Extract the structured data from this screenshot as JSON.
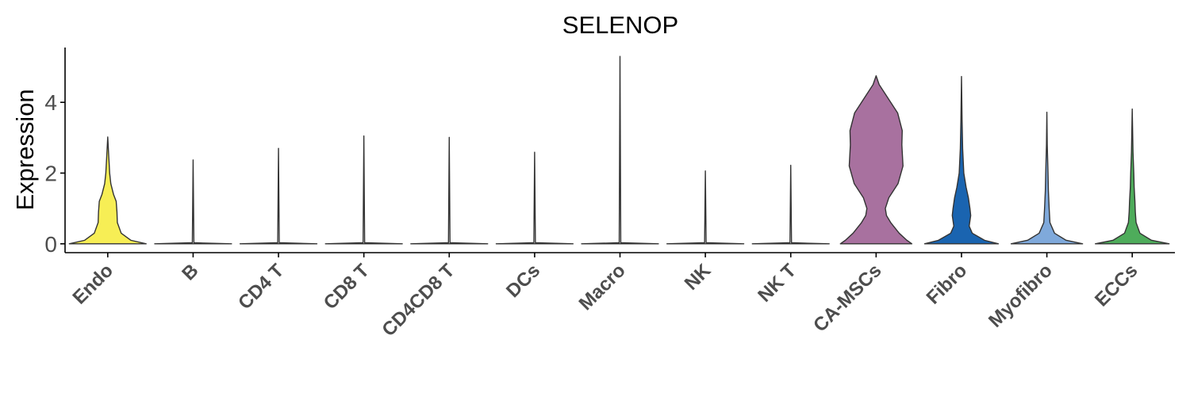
{
  "chart_data": {
    "type": "violin",
    "title": "SELENOP",
    "xlabel": "",
    "ylabel": "Expression",
    "ylim": [
      -0.25,
      5.55
    ],
    "yticks": [
      0,
      2,
      4
    ],
    "grid": false,
    "legend": "none",
    "categories": [
      "Endo",
      "B",
      "CD4 T",
      "CD8 T",
      "CD4CD8 T",
      "DCs",
      "Macro",
      "NK",
      "NK T",
      "CA-MSCs",
      "Fibro",
      "Myofibro",
      "ECCs"
    ],
    "colors": [
      "#F7EE55",
      "#FFFFFF",
      "#FFFFFF",
      "#FFFFFF",
      "#FFFFFF",
      "#FFFFFF",
      "#FFFFFF",
      "#FFFFFF",
      "#FFFFFF",
      "#A8719F",
      "#1A64B0",
      "#7FA9DB",
      "#4EAC5B"
    ],
    "max_values": [
      3.02,
      2.37,
      2.7,
      3.05,
      3.01,
      2.59,
      5.3,
      2.06,
      2.22,
      4.75,
      4.73,
      3.72,
      3.81
    ],
    "densities": [
      [
        [
          0,
          1.0
        ],
        [
          0.1,
          0.6
        ],
        [
          0.3,
          0.35
        ],
        [
          0.6,
          0.25
        ],
        [
          0.9,
          0.24
        ],
        [
          1.2,
          0.22
        ],
        [
          1.4,
          0.15
        ],
        [
          1.7,
          0.08
        ],
        [
          2.0,
          0.05
        ],
        [
          2.4,
          0.03
        ],
        [
          3.02,
          0
        ]
      ],
      [
        [
          0,
          1.0
        ],
        [
          0.03,
          0.02
        ],
        [
          2.37,
          0
        ]
      ],
      [
        [
          0,
          1.0
        ],
        [
          0.03,
          0.02
        ],
        [
          2.7,
          0
        ]
      ],
      [
        [
          0,
          1.0
        ],
        [
          0.03,
          0.02
        ],
        [
          3.05,
          0
        ]
      ],
      [
        [
          0,
          1.0
        ],
        [
          0.03,
          0.02
        ],
        [
          3.01,
          0
        ]
      ],
      [
        [
          0,
          1.0
        ],
        [
          0.03,
          0.02
        ],
        [
          2.59,
          0
        ]
      ],
      [
        [
          0,
          1.0
        ],
        [
          0.03,
          0.02
        ],
        [
          5.3,
          0
        ]
      ],
      [
        [
          0,
          1.0
        ],
        [
          0.03,
          0.02
        ],
        [
          2.06,
          0
        ]
      ],
      [
        [
          0,
          1.0
        ],
        [
          0.03,
          0.02
        ],
        [
          2.22,
          0
        ]
      ],
      [
        [
          0,
          0.93
        ],
        [
          0.1,
          0.8
        ],
        [
          0.3,
          0.6
        ],
        [
          0.6,
          0.38
        ],
        [
          0.8,
          0.27
        ],
        [
          1.0,
          0.24
        ],
        [
          1.3,
          0.33
        ],
        [
          1.7,
          0.57
        ],
        [
          2.2,
          0.7
        ],
        [
          2.8,
          0.67
        ],
        [
          3.2,
          0.68
        ],
        [
          3.7,
          0.56
        ],
        [
          4.2,
          0.26
        ],
        [
          4.5,
          0.08
        ],
        [
          4.75,
          0
        ]
      ],
      [
        [
          0,
          0.96
        ],
        [
          0.1,
          0.6
        ],
        [
          0.3,
          0.28
        ],
        [
          0.5,
          0.2
        ],
        [
          0.8,
          0.24
        ],
        [
          1.0,
          0.22
        ],
        [
          1.3,
          0.18
        ],
        [
          1.6,
          0.12
        ],
        [
          2.0,
          0.06
        ],
        [
          2.7,
          0.03
        ],
        [
          3.5,
          0.015
        ],
        [
          4.73,
          0
        ]
      ],
      [
        [
          0,
          0.93
        ],
        [
          0.1,
          0.5
        ],
        [
          0.3,
          0.2
        ],
        [
          0.6,
          0.08
        ],
        [
          1.0,
          0.06
        ],
        [
          1.5,
          0.04
        ],
        [
          2.0,
          0.03
        ],
        [
          2.8,
          0.01
        ],
        [
          3.72,
          0
        ]
      ],
      [
        [
          0,
          0.96
        ],
        [
          0.1,
          0.5
        ],
        [
          0.3,
          0.2
        ],
        [
          0.6,
          0.1
        ],
        [
          0.9,
          0.08
        ],
        [
          1.2,
          0.07
        ],
        [
          1.6,
          0.05
        ],
        [
          2.0,
          0.04
        ],
        [
          2.6,
          0.02
        ],
        [
          3.81,
          0
        ]
      ]
    ]
  }
}
